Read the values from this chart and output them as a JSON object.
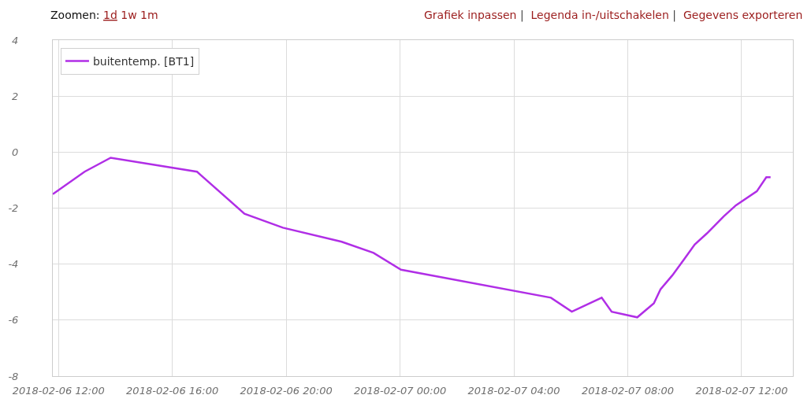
{
  "chart_data": {
    "type": "line",
    "annotations": [
      "Zoomen:",
      "1d",
      "1w",
      "1m",
      "Grafiek inpassen",
      "|",
      "Legenda in-/uitschakelen",
      "|",
      "Gegevens exporteren"
    ],
    "x": [
      "2018-02-06T11:48",
      "2018-02-06T12:55",
      "2018-02-06T13:50",
      "2018-02-06T16:52",
      "2018-02-06T18:32",
      "2018-02-06T19:53",
      "2018-02-06T21:57",
      "2018-02-06T23:04",
      "2018-02-07T00:02",
      "2018-02-07T05:18",
      "2018-02-07T06:02",
      "2018-02-07T07:05",
      "2018-02-07T07:26",
      "2018-02-07T08:20",
      "2018-02-07T08:55",
      "2018-02-07T09:09",
      "2018-02-07T09:34",
      "2018-02-07T10:00",
      "2018-02-07T10:21",
      "2018-02-07T10:47",
      "2018-02-07T11:22",
      "2018-02-07T11:48",
      "2018-02-07T12:32",
      "2018-02-07T12:52",
      "2018-02-07T13:01"
    ],
    "series": [
      {
        "name": "buitentemp. [BT1]",
        "color": "#b02ee6",
        "values": [
          -1.5,
          -0.7,
          -0.2,
          -0.7,
          -2.2,
          -2.7,
          -3.2,
          -3.6,
          -4.2,
          -5.2,
          -5.7,
          -5.2,
          -5.7,
          -5.9,
          -5.4,
          -4.9,
          -4.4,
          -3.8,
          -3.3,
          -2.9,
          -2.3,
          -1.9,
          -1.4,
          -0.9,
          -0.9
        ]
      }
    ],
    "xlim": [
      "2018-02-06T11:48",
      "2018-02-07T13:48"
    ],
    "xticks": [
      {
        "value": "2018-02-06T12:00",
        "label": "2018-02-06 12:00"
      },
      {
        "value": "2018-02-06T16:00",
        "label": "2018-02-06 16:00"
      },
      {
        "value": "2018-02-06T20:00",
        "label": "2018-02-06 20:00"
      },
      {
        "value": "2018-02-07T00:00",
        "label": "2018-02-07 00:00"
      },
      {
        "value": "2018-02-07T04:00",
        "label": "2018-02-07 04:00"
      },
      {
        "value": "2018-02-07T08:00",
        "label": "2018-02-07 08:00"
      },
      {
        "value": "2018-02-07T12:00",
        "label": "2018-02-07 12:00"
      }
    ],
    "ylim": [
      -8,
      4
    ],
    "yticks": [
      -8,
      -6,
      -4,
      -2,
      0,
      2,
      4
    ],
    "grid": true,
    "legend": "top left",
    "marker": "none",
    "line_style": "solid"
  }
}
